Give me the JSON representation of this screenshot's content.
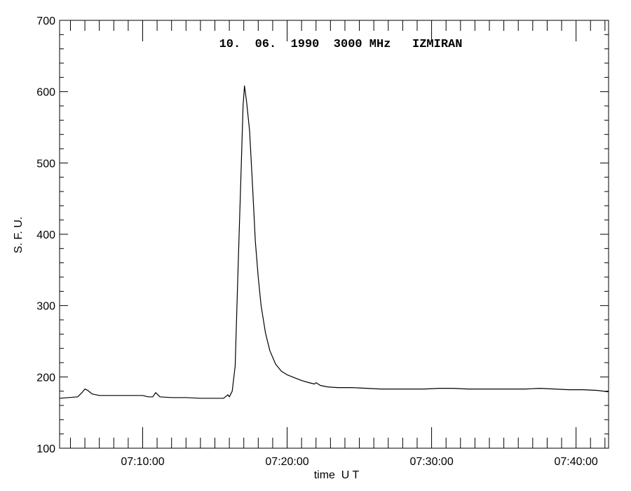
{
  "chart_data": {
    "type": "line",
    "title": "10.  06.  1990  3000 MHz   IZMIRAN",
    "xlabel": "time  U T",
    "ylabel": "S. F. U.",
    "x_unit": "minutes after 07:00:00 UT",
    "xlim": [
      4.25,
      42.25
    ],
    "ylim": [
      100,
      700
    ],
    "y_major_ticks": [
      100,
      200,
      300,
      400,
      500,
      600,
      700
    ],
    "x_tick_labels": [
      "07:10:00",
      "07:20:00",
      "07:30:00",
      "07:40:00"
    ],
    "grid": false,
    "legend": "none",
    "series": [
      {
        "x": [
          4.25,
          5.5,
          5.8,
          6.0,
          6.2,
          6.5,
          7.0,
          8.0,
          9.0,
          10.0,
          10.4,
          10.7,
          10.9,
          11.2,
          12.0,
          13.0,
          14.0,
          15.0,
          15.6,
          15.9,
          16.0,
          16.2,
          16.4,
          16.6,
          16.8,
          16.95,
          17.05,
          17.2,
          17.4,
          17.6,
          17.8,
          18.0,
          18.2,
          18.5,
          18.8,
          19.2,
          19.6,
          20.0,
          20.5,
          21.0,
          21.5,
          21.9,
          22.0,
          22.3,
          22.8,
          23.5,
          24.5,
          25.5,
          26.5,
          27.5,
          28.5,
          29.5,
          30.5,
          31.5,
          32.5,
          33.5,
          34.5,
          35.5,
          36.5,
          37.5,
          38.5,
          39.5,
          40.5,
          41.5,
          42.25
        ],
        "y": [
          170,
          172,
          178,
          183,
          181,
          176,
          174,
          174,
          174,
          174,
          172,
          172,
          178,
          172,
          171,
          171,
          170,
          170,
          170,
          175,
          172,
          180,
          215,
          350,
          480,
          580,
          608,
          585,
          545,
          470,
          390,
          340,
          300,
          262,
          237,
          218,
          208,
          203,
          199,
          195,
          192,
          190,
          192,
          188,
          186,
          185,
          185,
          184,
          183,
          183,
          183,
          183,
          184,
          184,
          183,
          183,
          183,
          183,
          183,
          184,
          183,
          182,
          182,
          181,
          179
        ]
      }
    ]
  }
}
